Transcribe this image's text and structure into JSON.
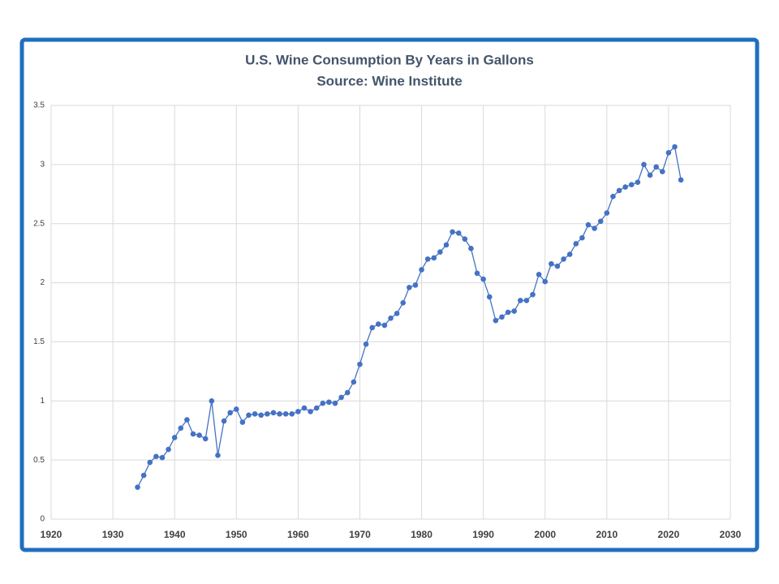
{
  "chart_data": {
    "type": "line",
    "title": "U.S. Wine Consumption By Years in Gallons",
    "subtitle": "Source: Wine Institute",
    "x": [
      1934,
      1935,
      1936,
      1937,
      1938,
      1939,
      1940,
      1941,
      1942,
      1943,
      1944,
      1945,
      1946,
      1947,
      1948,
      1949,
      1950,
      1951,
      1952,
      1953,
      1954,
      1955,
      1956,
      1957,
      1958,
      1959,
      1960,
      1961,
      1962,
      1963,
      1964,
      1965,
      1966,
      1967,
      1968,
      1969,
      1970,
      1971,
      1972,
      1973,
      1974,
      1975,
      1976,
      1977,
      1978,
      1979,
      1980,
      1981,
      1982,
      1983,
      1984,
      1985,
      1986,
      1987,
      1988,
      1989,
      1990,
      1991,
      1992,
      1993,
      1994,
      1995,
      1996,
      1997,
      1998,
      1999,
      2000,
      2001,
      2002,
      2003,
      2004,
      2005,
      2006,
      2007,
      2008,
      2009,
      2010,
      2011,
      2012,
      2013,
      2014,
      2015,
      2016,
      2017,
      2018,
      2019,
      2020,
      2021,
      2022
    ],
    "series": [
      {
        "color": "#4472c4",
        "values": [
          0.27,
          0.37,
          0.48,
          0.53,
          0.52,
          0.59,
          0.69,
          0.77,
          0.84,
          0.72,
          0.71,
          0.68,
          1.0,
          0.54,
          0.83,
          0.9,
          0.93,
          0.82,
          0.88,
          0.89,
          0.88,
          0.89,
          0.9,
          0.89,
          0.89,
          0.89,
          0.91,
          0.94,
          0.91,
          0.94,
          0.98,
          0.99,
          0.98,
          1.03,
          1.07,
          1.16,
          1.31,
          1.48,
          1.62,
          1.65,
          1.64,
          1.7,
          1.74,
          1.83,
          1.96,
          1.98,
          2.11,
          2.2,
          2.21,
          2.26,
          2.32,
          2.43,
          2.42,
          2.37,
          2.29,
          2.08,
          2.03,
          1.88,
          1.68,
          1.71,
          1.75,
          1.76,
          1.85,
          1.85,
          1.9,
          2.07,
          2.01,
          2.16,
          2.14,
          2.2,
          2.24,
          2.33,
          2.38,
          2.49,
          2.46,
          2.52,
          2.59,
          2.73,
          2.78,
          2.81,
          2.83,
          2.85,
          3.0,
          2.91,
          2.98,
          2.94,
          3.1,
          3.15,
          2.87
        ]
      }
    ],
    "xlim": [
      1920,
      2030
    ],
    "xticks": [
      1920,
      1930,
      1940,
      1950,
      1960,
      1970,
      1980,
      1990,
      2000,
      2010,
      2020,
      2030
    ],
    "ylim": [
      0,
      3.5
    ],
    "yticks": [
      0,
      0.5,
      1,
      1.5,
      2,
      2.5,
      3,
      3.5
    ],
    "grid": true
  }
}
